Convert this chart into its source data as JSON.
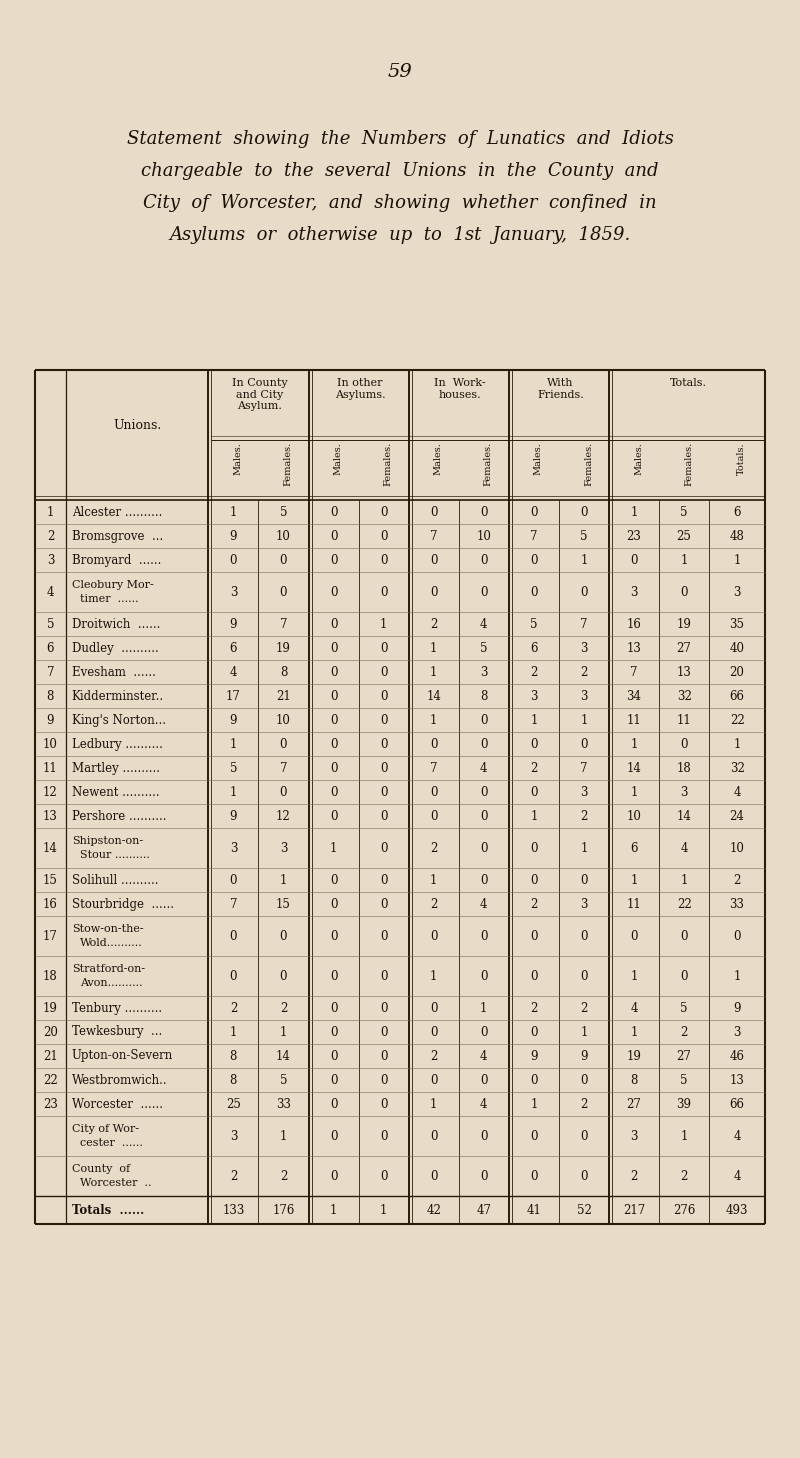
{
  "page_number": "59",
  "title_lines": [
    "Statement  showing  the  Numbers  of  Lunatics  and  Idiots",
    "chargeable  to  the  several  Unions  in  the  County  and",
    "City  of  Worcester,  and  showing  whether  confined  in",
    "Asylums  or  otherwise  up  to  1st  January,  1859."
  ],
  "bg_color": "#e8dcc8",
  "text_color": "#1a1008",
  "rows": [
    {
      "num": "1",
      "name1": "Alcester ..........",
      "name2": "",
      "data": [
        1,
        5,
        0,
        0,
        0,
        0,
        0,
        0,
        1,
        5,
        6
      ],
      "double": false,
      "is_total": false
    },
    {
      "num": "2",
      "name1": "Bromsgrove  ...",
      "name2": "",
      "data": [
        9,
        10,
        0,
        0,
        7,
        10,
        7,
        5,
        23,
        25,
        48
      ],
      "double": false,
      "is_total": false
    },
    {
      "num": "3",
      "name1": "Bromyard  ......",
      "name2": "",
      "data": [
        0,
        0,
        0,
        0,
        0,
        0,
        0,
        1,
        0,
        1,
        1
      ],
      "double": false,
      "is_total": false
    },
    {
      "num": "4",
      "name1": "Cleobury Mor-",
      "name2": "timer  ......",
      "data": [
        3,
        0,
        0,
        0,
        0,
        0,
        0,
        0,
        3,
        0,
        3
      ],
      "double": true,
      "is_total": false
    },
    {
      "num": "5",
      "name1": "Droitwich  ......",
      "name2": "",
      "data": [
        9,
        7,
        0,
        1,
        2,
        4,
        5,
        7,
        16,
        19,
        35
      ],
      "double": false,
      "is_total": false
    },
    {
      "num": "6",
      "name1": "Dudley  ..........",
      "name2": "",
      "data": [
        6,
        19,
        0,
        0,
        1,
        5,
        6,
        3,
        13,
        27,
        40
      ],
      "double": false,
      "is_total": false
    },
    {
      "num": "7",
      "name1": "Evesham  ......",
      "name2": "",
      "data": [
        4,
        8,
        0,
        0,
        1,
        3,
        2,
        2,
        7,
        13,
        20
      ],
      "double": false,
      "is_total": false
    },
    {
      "num": "8",
      "name1": "Kidderminster..",
      "name2": "",
      "data": [
        17,
        21,
        0,
        0,
        14,
        8,
        3,
        3,
        34,
        32,
        66
      ],
      "double": false,
      "is_total": false
    },
    {
      "num": "9",
      "name1": "King's Norton...",
      "name2": "",
      "data": [
        9,
        10,
        0,
        0,
        1,
        0,
        1,
        1,
        11,
        11,
        22
      ],
      "double": false,
      "is_total": false
    },
    {
      "num": "10",
      "name1": "Ledbury ..........",
      "name2": "",
      "data": [
        1,
        0,
        0,
        0,
        0,
        0,
        0,
        0,
        1,
        0,
        1
      ],
      "double": false,
      "is_total": false
    },
    {
      "num": "11",
      "name1": "Martley ..........",
      "name2": "",
      "data": [
        5,
        7,
        0,
        0,
        7,
        4,
        2,
        7,
        14,
        18,
        32
      ],
      "double": false,
      "is_total": false
    },
    {
      "num": "12",
      "name1": "Newent ..........",
      "name2": "",
      "data": [
        1,
        0,
        0,
        0,
        0,
        0,
        0,
        3,
        1,
        3,
        4
      ],
      "double": false,
      "is_total": false
    },
    {
      "num": "13",
      "name1": "Pershore ..........",
      "name2": "",
      "data": [
        9,
        12,
        0,
        0,
        0,
        0,
        1,
        2,
        10,
        14,
        24
      ],
      "double": false,
      "is_total": false
    },
    {
      "num": "14",
      "name1": "Shipston-on-",
      "name2": "Stour ..........",
      "data": [
        3,
        3,
        1,
        0,
        2,
        0,
        0,
        1,
        6,
        4,
        10
      ],
      "double": true,
      "is_total": false
    },
    {
      "num": "15",
      "name1": "Solihull ..........",
      "name2": "",
      "data": [
        0,
        1,
        0,
        0,
        1,
        0,
        0,
        0,
        1,
        1,
        2
      ],
      "double": false,
      "is_total": false
    },
    {
      "num": "16",
      "name1": "Stourbridge  ......",
      "name2": "",
      "data": [
        7,
        15,
        0,
        0,
        2,
        4,
        2,
        3,
        11,
        22,
        33
      ],
      "double": false,
      "is_total": false
    },
    {
      "num": "17",
      "name1": "Stow-on-the-",
      "name2": "Wold..........",
      "data": [
        0,
        0,
        0,
        0,
        0,
        0,
        0,
        0,
        0,
        0,
        0
      ],
      "double": true,
      "is_total": false
    },
    {
      "num": "18",
      "name1": "Stratford-on-",
      "name2": "Avon..........",
      "data": [
        0,
        0,
        0,
        0,
        1,
        0,
        0,
        0,
        1,
        0,
        1
      ],
      "double": true,
      "is_total": false
    },
    {
      "num": "19",
      "name1": "Tenbury ..........",
      "name2": "",
      "data": [
        2,
        2,
        0,
        0,
        0,
        1,
        2,
        2,
        4,
        5,
        9
      ],
      "double": false,
      "is_total": false
    },
    {
      "num": "20",
      "name1": "Tewkesbury  ...",
      "name2": "",
      "data": [
        1,
        1,
        0,
        0,
        0,
        0,
        0,
        1,
        1,
        2,
        3
      ],
      "double": false,
      "is_total": false
    },
    {
      "num": "21",
      "name1": "Upton-on-Severn",
      "name2": "",
      "data": [
        8,
        14,
        0,
        0,
        2,
        4,
        9,
        9,
        19,
        27,
        46
      ],
      "double": false,
      "is_total": false
    },
    {
      "num": "22",
      "name1": "Westbromwich..",
      "name2": "",
      "data": [
        8,
        5,
        0,
        0,
        0,
        0,
        0,
        0,
        8,
        5,
        13
      ],
      "double": false,
      "is_total": false
    },
    {
      "num": "23",
      "name1": "Worcester  ......",
      "name2": "",
      "data": [
        25,
        33,
        0,
        0,
        1,
        4,
        1,
        2,
        27,
        39,
        66
      ],
      "double": false,
      "is_total": false
    },
    {
      "num": "",
      "name1": "City of Wor-",
      "name2": "cester  ......",
      "data": [
        3,
        1,
        0,
        0,
        0,
        0,
        0,
        0,
        3,
        1,
        4
      ],
      "double": true,
      "is_total": false
    },
    {
      "num": "",
      "name1": "County  of",
      "name2": "Worcester  ..",
      "data": [
        2,
        2,
        0,
        0,
        0,
        0,
        0,
        0,
        2,
        2,
        4
      ],
      "double": true,
      "is_total": false
    },
    {
      "num": "",
      "name1": "Totals  ......",
      "name2": "",
      "data": [
        133,
        176,
        1,
        1,
        42,
        47,
        41,
        52,
        217,
        276,
        493
      ],
      "double": false,
      "is_total": true
    }
  ]
}
